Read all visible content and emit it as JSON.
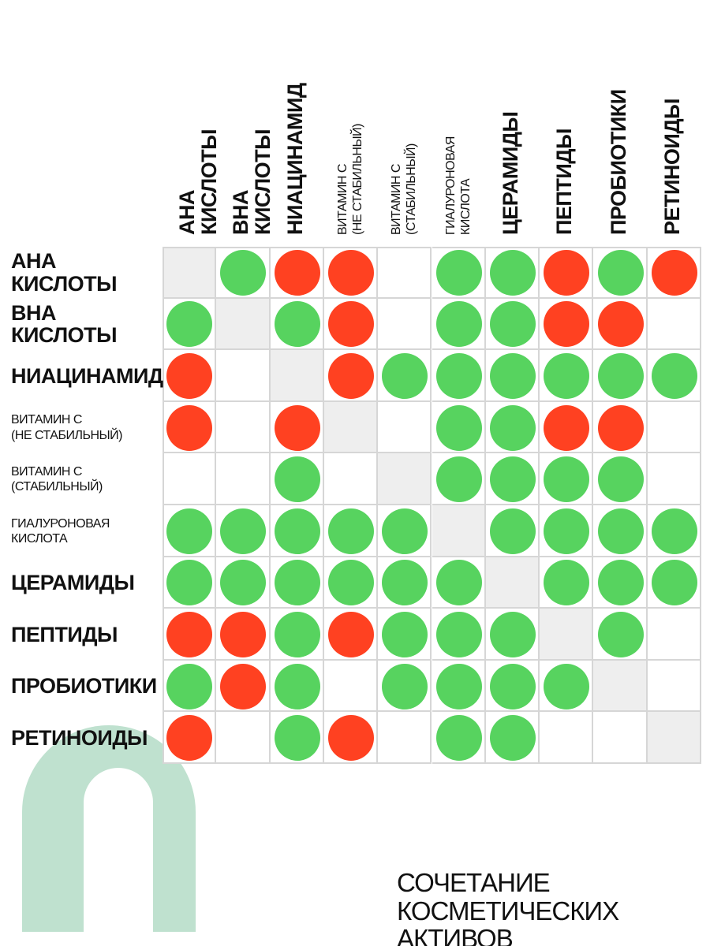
{
  "chart_data": {
    "type": "table",
    "title": "СОЧЕТАНИЕ КОСМЕТИЧЕСКИХ\nАКТИВОВ",
    "columns": [
      "АНА КИСЛОТЫ",
      "ВНА КИСЛОТЫ",
      "НИАЦИНАМИД",
      "ВИТАМИН С\n(НЕ СТАБИЛЬНЫЙ)",
      "ВИТАМИН С\n(СТАБИЛЬНЫЙ)",
      "ГИАЛУРОНОВАЯ\nКИСЛОТА",
      "ЦЕРАМИДЫ",
      "ПЕПТИДЫ",
      "ПРОБИОТИКИ",
      "РЕТИНОИДЫ"
    ],
    "rows": [
      "АНА КИСЛОТЫ",
      "ВНА КИСЛОТЫ",
      "НИАЦИНАМИД",
      "ВИТАМИН С\n(НЕ СТАБИЛЬНЫЙ)",
      "ВИТАМИН С\n(СТАБИЛЬНЫЙ)",
      "ГИАЛУРОНОВАЯ\nКИСЛОТА",
      "ЦЕРАМИДЫ",
      "ПЕПТИДЫ",
      "ПРОБИОТИКИ",
      "РЕТИНОИДЫ"
    ],
    "matrix": [
      [
        "diag",
        "green",
        "red",
        "red",
        "",
        "green",
        "green",
        "red",
        "green",
        "red"
      ],
      [
        "green",
        "diag",
        "green",
        "red",
        "",
        "green",
        "green",
        "red",
        "red",
        ""
      ],
      [
        "red",
        "",
        "diag",
        "red",
        "green",
        "green",
        "green",
        "green",
        "green",
        "green"
      ],
      [
        "red",
        "",
        "red",
        "diag",
        "",
        "green",
        "green",
        "red",
        "red",
        ""
      ],
      [
        "",
        "",
        "green",
        "",
        "diag",
        "green",
        "green",
        "green",
        "green",
        ""
      ],
      [
        "green",
        "green",
        "green",
        "green",
        "green",
        "diag",
        "green",
        "green",
        "green",
        "green"
      ],
      [
        "green",
        "green",
        "green",
        "green",
        "green",
        "green",
        "diag",
        "green",
        "green",
        "green"
      ],
      [
        "red",
        "red",
        "green",
        "red",
        "green",
        "green",
        "green",
        "diag",
        "green",
        ""
      ],
      [
        "green",
        "red",
        "green",
        "",
        "green",
        "green",
        "green",
        "green",
        "diag",
        ""
      ],
      [
        "red",
        "",
        "green",
        "red",
        "",
        "green",
        "green",
        "",
        "",
        "diag"
      ]
    ],
    "grid": true,
    "colors": {
      "green": "#57d35f",
      "red": "#ff4121",
      "diagonal": "#eeeeee",
      "grid": "#d6d6d6",
      "logo": "#a6d6bc"
    },
    "logo_icon": "arch-logo-icon"
  }
}
